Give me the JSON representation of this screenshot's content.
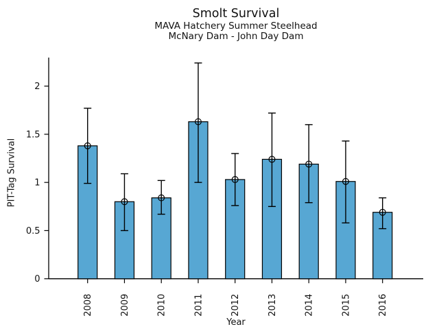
{
  "figure": {
    "title": "Smolt Survival",
    "subtitle_line1": "MAVA Hatchery Summer Steelhead",
    "subtitle_line2": "McNary Dam - John Day Dam"
  },
  "chart_data": {
    "type": "bar",
    "title": "Smolt Survival",
    "subtitle_lines": [
      "MAVA Hatchery Summer Steelhead",
      "McNary Dam - John Day Dam"
    ],
    "xlabel": "Year",
    "ylabel": "PIT-Tag Survival",
    "categories": [
      "2008",
      "2009",
      "2010",
      "2011",
      "2012",
      "2013",
      "2014",
      "2015",
      "2016"
    ],
    "values": [
      1.38,
      0.8,
      0.84,
      1.63,
      1.03,
      1.24,
      1.19,
      1.01,
      0.69
    ],
    "error_low": [
      0.99,
      0.5,
      0.67,
      1.0,
      0.76,
      0.75,
      0.79,
      0.58,
      0.52
    ],
    "error_high": [
      1.77,
      1.09,
      1.02,
      2.24,
      1.3,
      1.72,
      1.6,
      1.43,
      0.84
    ],
    "point_marker": "open-circle",
    "yticks": [
      0,
      0.5,
      1,
      1.5,
      2
    ],
    "ytick_labels": [
      "0",
      "0.5",
      "1",
      "1.5",
      "2"
    ],
    "ylim": [
      0,
      2.29
    ],
    "grid": false,
    "legend": "none",
    "bar_color": "#57a7d3",
    "edge_color": "#000000",
    "errorbar_color": "#000000",
    "background_color": "#ffffff"
  }
}
